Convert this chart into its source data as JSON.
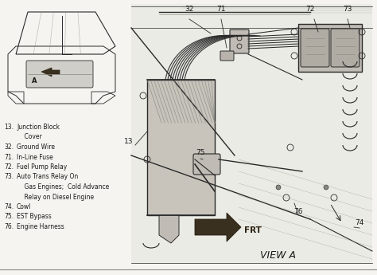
{
  "bg_color": "#f5f4f0",
  "title": "VIEW A",
  "legend_items": [
    [
      "13.",
      "Junction Block"
    ],
    [
      "",
      "    Cover"
    ],
    [
      "32.",
      "Ground Wire"
    ],
    [
      "71.",
      "In-Line Fuse"
    ],
    [
      "72.",
      "Fuel Pump Relay"
    ],
    [
      "73.",
      "Auto Trans Relay On"
    ],
    [
      "",
      "    Gas Engines;  Cold Advance"
    ],
    [
      "",
      "    Relay on Diesel Engine"
    ],
    [
      "74.",
      "Cowl"
    ],
    [
      "75.",
      "EST Bypass"
    ],
    [
      "76.",
      "Engine Harness"
    ]
  ],
  "line_color": "#2a2a2a",
  "text_color": "#1a1a1a",
  "diagram_bg": "#e8e6e0"
}
